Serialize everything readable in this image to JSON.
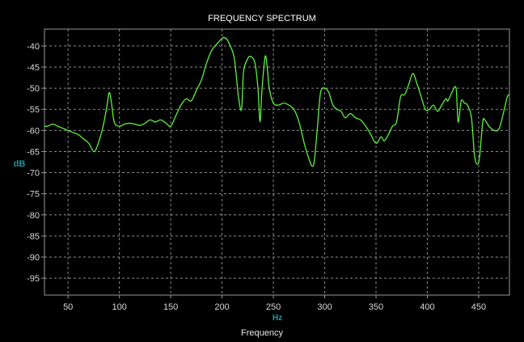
{
  "chart_data": {
    "type": "line",
    "title": "FREQUENCY SPECTRUM",
    "xlabel": "Frequency",
    "ylabel": "dB",
    "x_unit": "Hz",
    "xlim": [
      27,
      480
    ],
    "ylim": [
      -99,
      -36
    ],
    "xticks": [
      50,
      100,
      150,
      200,
      250,
      300,
      350,
      400,
      450
    ],
    "yticks": [
      -40,
      -45,
      -50,
      -55,
      -60,
      -65,
      -70,
      -75,
      -80,
      -85,
      -90,
      -95
    ],
    "grid": true,
    "background": "#000000",
    "series_color": "#5ef03c",
    "series": [
      {
        "x": [
          27,
          30,
          35,
          40,
          45,
          50,
          55,
          60,
          65,
          70,
          75,
          78,
          82,
          85,
          88,
          90,
          92,
          95,
          100,
          105,
          110,
          115,
          120,
          125,
          130,
          135,
          140,
          145,
          150,
          155,
          160,
          165,
          170,
          175,
          180,
          185,
          190,
          195,
          200,
          202,
          205,
          208,
          212,
          216,
          219,
          221,
          225,
          228,
          232,
          235,
          237,
          239,
          242,
          244,
          246,
          250,
          255,
          260,
          265,
          270,
          275,
          280,
          285,
          288,
          290,
          293,
          296,
          300,
          304,
          308,
          312,
          316,
          320,
          325,
          330,
          335,
          340,
          345,
          348,
          351,
          355,
          358,
          362,
          366,
          370,
          374,
          378,
          382,
          386,
          390,
          394,
          398,
          402,
          406,
          410,
          414,
          418,
          420,
          424,
          428,
          430,
          433,
          436,
          439,
          443,
          446,
          449,
          451,
          454,
          456,
          460,
          465,
          470,
          475,
          478,
          480
        ],
        "y": [
          -59,
          -59,
          -58.5,
          -59,
          -59.5,
          -60,
          -60.5,
          -61,
          -62,
          -63,
          -65,
          -64,
          -61,
          -58,
          -54,
          -51,
          -53,
          -58,
          -59,
          -58.5,
          -58.3,
          -58.5,
          -58.8,
          -58.3,
          -57.5,
          -58,
          -57.5,
          -58.2,
          -59,
          -56.5,
          -54,
          -52.5,
          -53,
          -50.5,
          -48,
          -44,
          -41,
          -39.5,
          -38.2,
          -38,
          -38.5,
          -40,
          -43,
          -52,
          -55,
          -46,
          -43,
          -42.5,
          -44,
          -50,
          -58,
          -50,
          -42.5,
          -45,
          -50,
          -53.5,
          -54,
          -53.5,
          -54,
          -55,
          -58,
          -63,
          -67,
          -68.5,
          -67,
          -59,
          -51,
          -50,
          -51,
          -54,
          -55,
          -55.5,
          -57,
          -56,
          -57,
          -57.5,
          -59,
          -61,
          -62.5,
          -63,
          -61.5,
          -62.5,
          -61,
          -59,
          -58,
          -52,
          -51.5,
          -49,
          -46.5,
          -49,
          -52,
          -55,
          -55,
          -54,
          -55.5,
          -54,
          -52.5,
          -53,
          -51,
          -50,
          -58,
          -53,
          -53.5,
          -54,
          -57,
          -66,
          -68,
          -66,
          -58,
          -57.5,
          -59,
          -60,
          -59.5,
          -55,
          -52,
          -51.5
        ]
      }
    ]
  }
}
